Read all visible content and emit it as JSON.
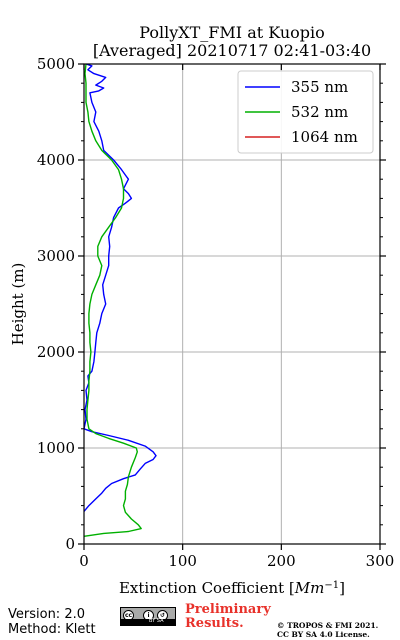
{
  "chart_data": {
    "type": "line",
    "title": "PollyXT_FMI at Kuopio",
    "subtitle": "[Averaged] 20210717 02:41-03:40",
    "xlabel": "Extinction Coefficient [",
    "xlabel_unit": "Mm",
    "xlabel_unit_exp": "−1",
    "xlabel_end": "]",
    "ylabel": "Height (m)",
    "xlim": [
      0,
      300
    ],
    "ylim": [
      0,
      5000
    ],
    "xticks": [
      0,
      100,
      200,
      300
    ],
    "yticks": [
      0,
      1000,
      2000,
      3000,
      4000,
      5000
    ],
    "grid": true,
    "legend_position": "top-right",
    "series": [
      {
        "name": "355 nm",
        "color": "#0000ff",
        "points": [
          [
            0,
            340
          ],
          [
            5,
            400
          ],
          [
            12,
            470
          ],
          [
            18,
            530
          ],
          [
            22,
            580
          ],
          [
            28,
            630
          ],
          [
            40,
            680
          ],
          [
            52,
            720
          ],
          [
            57,
            780
          ],
          [
            62,
            840
          ],
          [
            70,
            880
          ],
          [
            73,
            920
          ],
          [
            70,
            960
          ],
          [
            62,
            1020
          ],
          [
            45,
            1080
          ],
          [
            25,
            1130
          ],
          [
            8,
            1170
          ],
          [
            0,
            1200
          ],
          [
            2,
            1300
          ],
          [
            1,
            1400
          ],
          [
            3,
            1500
          ],
          [
            2,
            1600
          ],
          [
            5,
            1680
          ],
          [
            4,
            1750
          ],
          [
            8,
            1800
          ],
          [
            10,
            1900
          ],
          [
            11,
            2000
          ],
          [
            12,
            2100
          ],
          [
            13,
            2200
          ],
          [
            16,
            2300
          ],
          [
            18,
            2400
          ],
          [
            22,
            2500
          ],
          [
            20,
            2600
          ],
          [
            19,
            2700
          ],
          [
            22,
            2800
          ],
          [
            25,
            2900
          ],
          [
            25,
            3000
          ],
          [
            26,
            3100
          ],
          [
            25,
            3200
          ],
          [
            28,
            3300
          ],
          [
            30,
            3400
          ],
          [
            35,
            3500
          ],
          [
            42,
            3550
          ],
          [
            48,
            3600
          ],
          [
            45,
            3650
          ],
          [
            40,
            3700
          ],
          [
            45,
            3800
          ],
          [
            38,
            3900
          ],
          [
            30,
            4000
          ],
          [
            20,
            4100
          ],
          [
            18,
            4200
          ],
          [
            15,
            4300
          ],
          [
            10,
            4400
          ],
          [
            12,
            4500
          ],
          [
            8,
            4600
          ],
          [
            6,
            4700
          ],
          [
            15,
            4720
          ],
          [
            20,
            4750
          ],
          [
            12,
            4780
          ],
          [
            18,
            4820
          ],
          [
            22,
            4860
          ],
          [
            10,
            4900
          ],
          [
            4,
            4940
          ],
          [
            8,
            4980
          ],
          [
            2,
            5000
          ]
        ]
      },
      {
        "name": "532 nm",
        "color": "#00b000",
        "points": [
          [
            0,
            80
          ],
          [
            20,
            110
          ],
          [
            45,
            130
          ],
          [
            58,
            160
          ],
          [
            55,
            200
          ],
          [
            48,
            260
          ],
          [
            42,
            330
          ],
          [
            40,
            400
          ],
          [
            42,
            470
          ],
          [
            42,
            550
          ],
          [
            44,
            620
          ],
          [
            45,
            700
          ],
          [
            48,
            800
          ],
          [
            52,
            900
          ],
          [
            54,
            960
          ],
          [
            53,
            1000
          ],
          [
            40,
            1050
          ],
          [
            25,
            1100
          ],
          [
            12,
            1150
          ],
          [
            5,
            1200
          ],
          [
            3,
            1300
          ],
          [
            3,
            1400
          ],
          [
            4,
            1500
          ],
          [
            5,
            1600
          ],
          [
            5,
            1700
          ],
          [
            6,
            1800
          ],
          [
            6,
            1900
          ],
          [
            7,
            2000
          ],
          [
            6,
            2100
          ],
          [
            6,
            2200
          ],
          [
            5,
            2300
          ],
          [
            5,
            2400
          ],
          [
            6,
            2500
          ],
          [
            8,
            2600
          ],
          [
            12,
            2700
          ],
          [
            16,
            2800
          ],
          [
            18,
            2900
          ],
          [
            14,
            3000
          ],
          [
            14,
            3100
          ],
          [
            18,
            3200
          ],
          [
            25,
            3300
          ],
          [
            32,
            3400
          ],
          [
            38,
            3500
          ],
          [
            40,
            3600
          ],
          [
            40,
            3700
          ],
          [
            38,
            3800
          ],
          [
            35,
            3900
          ],
          [
            28,
            4000
          ],
          [
            18,
            4100
          ],
          [
            12,
            4200
          ],
          [
            8,
            4300
          ],
          [
            5,
            4400
          ],
          [
            4,
            4500
          ],
          [
            2,
            4600
          ],
          [
            2,
            4700
          ],
          [
            2,
            4800
          ],
          [
            1,
            4900
          ],
          [
            2,
            5000
          ]
        ]
      },
      {
        "name": "1064 nm",
        "color": "#d62020",
        "points": []
      }
    ]
  },
  "footer": {
    "version": "Version: 2.0",
    "method": "Method: Klett",
    "preliminary": "Preliminary Results.",
    "copyright_line1": "© TROPOS & FMI 2021.",
    "copyright_line2": "CC BY SA 4.0 License.",
    "badge_text": "BY SA"
  }
}
